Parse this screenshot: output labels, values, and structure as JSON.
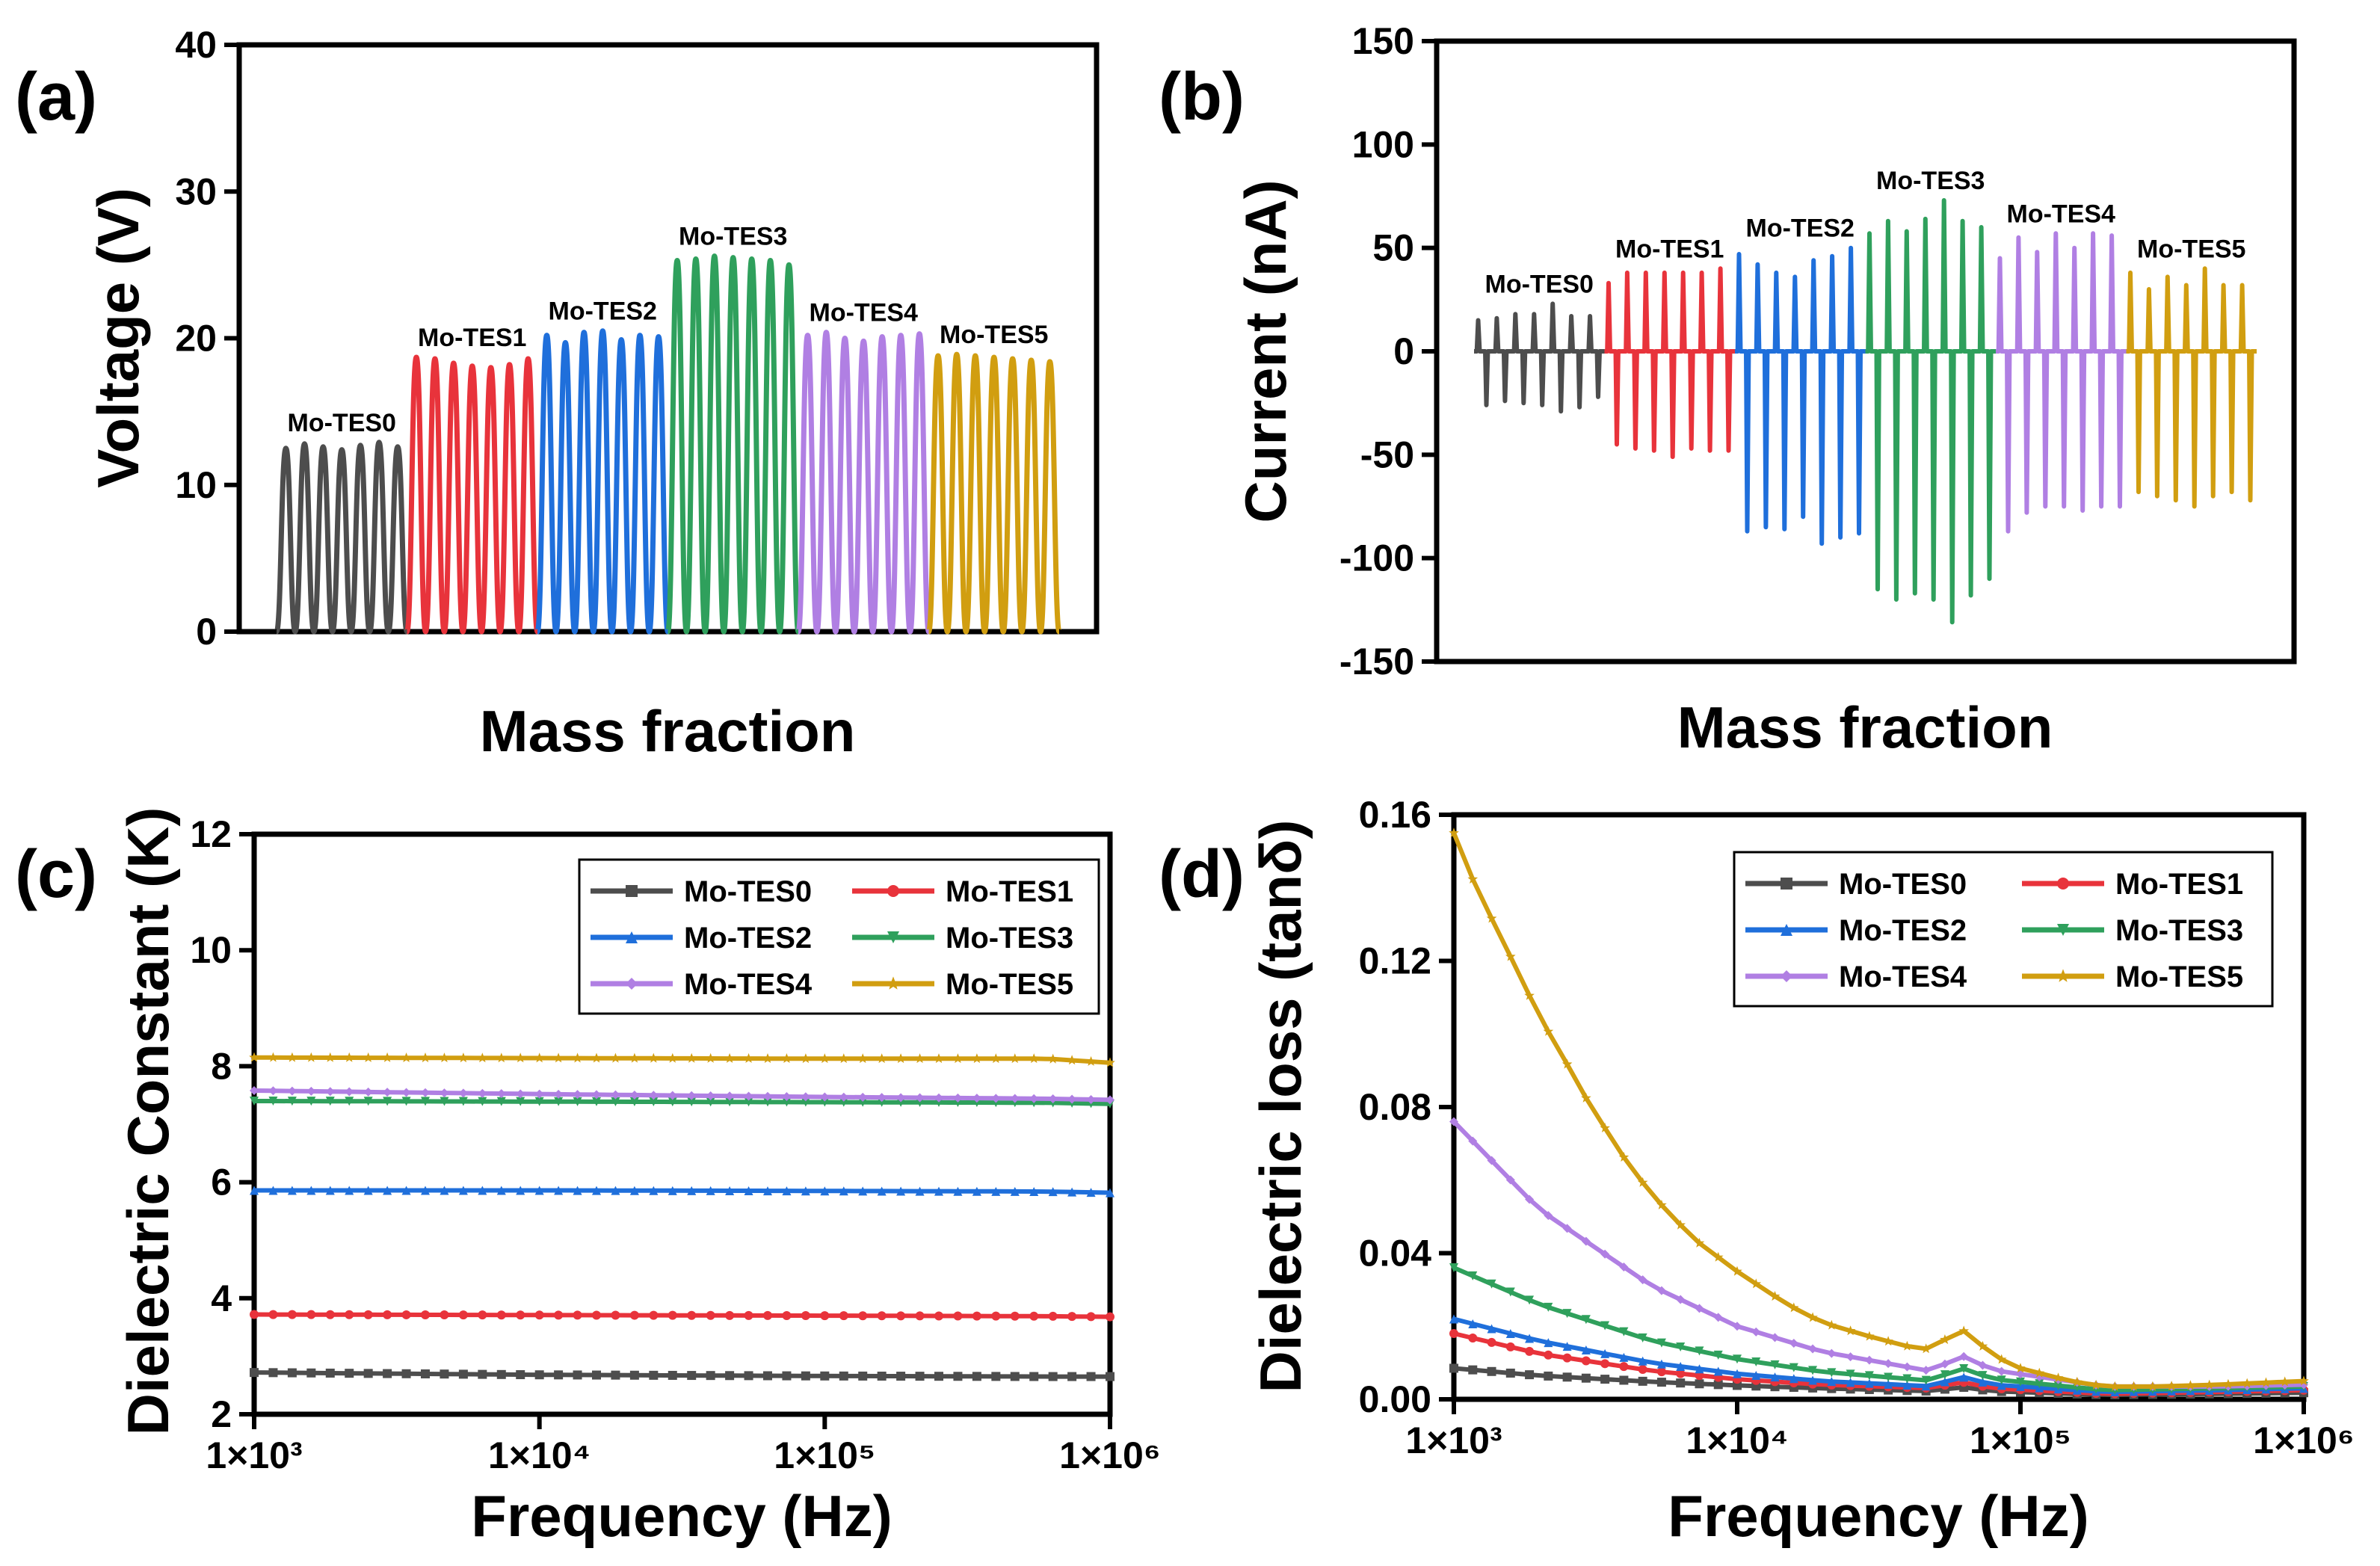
{
  "chart_data": [
    {
      "id": "a",
      "panel_label": "(a)",
      "type": "line",
      "xlabel": "Mass fraction",
      "ylabel": "Voltage (V)",
      "ylim": [
        0,
        40
      ],
      "yticks": [
        0,
        10,
        20,
        30,
        40
      ],
      "ytick_labels": [
        "0",
        "10",
        "20",
        "30",
        "40"
      ],
      "series": [
        {
          "name": "Mo-TES0",
          "color": "#4d4d4d",
          "peaks": [
            12.5,
            12.8,
            12.6,
            12.4,
            12.7,
            12.9,
            12.6
          ]
        },
        {
          "name": "Mo-TES1",
          "color": "#e8333b",
          "peaks": [
            18.7,
            18.6,
            18.3,
            18.1,
            18.0,
            18.2,
            18.6
          ]
        },
        {
          "name": "Mo-TES2",
          "color": "#1f6fdb",
          "peaks": [
            20.2,
            19.7,
            20.4,
            20.5,
            19.9,
            20.2,
            20.1
          ]
        },
        {
          "name": "Mo-TES3",
          "color": "#2fa05c",
          "peaks": [
            25.3,
            25.4,
            25.6,
            25.5,
            25.4,
            25.3,
            25.0
          ]
        },
        {
          "name": "Mo-TES4",
          "color": "#b07fe3",
          "peaks": [
            20.2,
            20.4,
            20.0,
            19.8,
            20.1,
            20.2,
            20.3
          ]
        },
        {
          "name": "Mo-TES5",
          "color": "#d19e10",
          "peaks": [
            18.8,
            18.9,
            18.8,
            18.7,
            18.6,
            18.5,
            18.4
          ]
        }
      ]
    },
    {
      "id": "b",
      "panel_label": "(b)",
      "type": "line",
      "xlabel": "Mass fraction",
      "ylabel": "Current (nA)",
      "ylim": [
        -150,
        150
      ],
      "yticks": [
        -150,
        -100,
        -50,
        0,
        50,
        100,
        150
      ],
      "ytick_labels": [
        "-150",
        "-100",
        "-50",
        "0",
        "50",
        "100",
        "150"
      ],
      "series": [
        {
          "name": "Mo-TES0",
          "color": "#4d4d4d",
          "pos": [
            15,
            16,
            18,
            18,
            23,
            17,
            17
          ],
          "neg": [
            -26,
            -24,
            -25,
            -26,
            -29,
            -27,
            -22
          ]
        },
        {
          "name": "Mo-TES1",
          "color": "#e8333b",
          "pos": [
            33,
            38,
            38,
            38,
            38,
            38,
            40
          ],
          "neg": [
            -45,
            -47,
            -48,
            -51,
            -47,
            -48,
            -48
          ]
        },
        {
          "name": "Mo-TES2",
          "color": "#1f6fdb",
          "pos": [
            47,
            42,
            38,
            36,
            44,
            46,
            50
          ],
          "neg": [
            -87,
            -85,
            -86,
            -80,
            -93,
            -90,
            -88
          ]
        },
        {
          "name": "Mo-TES3",
          "color": "#2fa05c",
          "pos": [
            57,
            63,
            58,
            64,
            73,
            63,
            60
          ],
          "neg": [
            -115,
            -120,
            -117,
            -120,
            -131,
            -118,
            -110
          ]
        },
        {
          "name": "Mo-TES4",
          "color": "#b07fe3",
          "pos": [
            45,
            55,
            48,
            57,
            50,
            57,
            56
          ],
          "neg": [
            -87,
            -78,
            -75,
            -75,
            -77,
            -75,
            -75
          ]
        },
        {
          "name": "Mo-TES5",
          "color": "#d19e10",
          "pos": [
            38,
            30,
            36,
            32,
            40,
            32,
            32
          ],
          "neg": [
            -68,
            -70,
            -72,
            -75,
            -70,
            -68,
            -72
          ]
        }
      ]
    },
    {
      "id": "c",
      "panel_label": "(c)",
      "type": "line",
      "xscale": "log",
      "xlim": [
        1000,
        1000000
      ],
      "xticks": [
        1000,
        10000,
        100000,
        1000000
      ],
      "xtick_labels": [
        "1×10³",
        "1×10⁴",
        "1×10⁵",
        "1×10⁶"
      ],
      "xlabel": "Frequency (Hz)",
      "ylabel": "Dielectric Constant (K)",
      "ylim": [
        2,
        12
      ],
      "yticks": [
        2,
        4,
        6,
        8,
        10,
        12
      ],
      "ytick_labels": [
        "2",
        "4",
        "6",
        "8",
        "10",
        "12"
      ],
      "legend": "top-right",
      "series": [
        {
          "name": "Mo-TES0",
          "color": "#4d4d4d",
          "marker": "square",
          "x": [
            1000,
            10000,
            100000,
            600000,
            1000000
          ],
          "y": [
            2.72,
            2.68,
            2.66,
            2.65,
            2.65
          ]
        },
        {
          "name": "Mo-TES1",
          "color": "#e8333b",
          "marker": "circle",
          "x": [
            1000,
            10000,
            100000,
            600000,
            1000000
          ],
          "y": [
            3.72,
            3.71,
            3.7,
            3.69,
            3.68
          ]
        },
        {
          "name": "Mo-TES2",
          "color": "#1f6fdb",
          "marker": "triangle-up",
          "x": [
            1000,
            10000,
            100000,
            600000,
            1000000
          ],
          "y": [
            5.86,
            5.86,
            5.85,
            5.84,
            5.82
          ]
        },
        {
          "name": "Mo-TES3",
          "color": "#2fa05c",
          "marker": "triangle-down",
          "x": [
            1000,
            10000,
            100000,
            600000,
            1000000
          ],
          "y": [
            7.4,
            7.39,
            7.38,
            7.37,
            7.35
          ]
        },
        {
          "name": "Mo-TES4",
          "color": "#b07fe3",
          "marker": "diamond",
          "x": [
            1000,
            10000,
            100000,
            600000,
            1000000
          ],
          "y": [
            7.58,
            7.52,
            7.47,
            7.44,
            7.42
          ]
        },
        {
          "name": "Mo-TES5",
          "color": "#d19e10",
          "marker": "star",
          "x": [
            1000,
            10000,
            100000,
            600000,
            1000000
          ],
          "y": [
            8.15,
            8.14,
            8.13,
            8.13,
            8.06
          ]
        }
      ]
    },
    {
      "id": "d",
      "panel_label": "(d)",
      "type": "line",
      "xscale": "log",
      "xlim": [
        1000,
        1000000
      ],
      "xticks": [
        1000,
        10000,
        100000,
        1000000
      ],
      "xtick_labels": [
        "1×10³",
        "1×10⁴",
        "1×10⁵",
        "1×10⁶"
      ],
      "xlabel": "Frequency (Hz)",
      "ylabel": "Dielectric loss (tanδ)",
      "ylim": [
        0,
        0.16
      ],
      "yticks": [
        0,
        0.04,
        0.08,
        0.12,
        0.16
      ],
      "ytick_labels": [
        "0.00",
        "0.04",
        "0.08",
        "0.12",
        "0.16"
      ],
      "legend": "top-right",
      "series": [
        {
          "name": "Mo-TES0",
          "color": "#4d4d4d",
          "marker": "square",
          "x": [
            1000,
            2000,
            5000,
            10000,
            20000,
            50000,
            60000,
            80000,
            200000,
            500000,
            1000000
          ],
          "y": [
            0.0085,
            0.0065,
            0.0048,
            0.0038,
            0.003,
            0.0022,
            0.0035,
            0.0022,
            0.0012,
            0.0015,
            0.0018
          ]
        },
        {
          "name": "Mo-TES1",
          "color": "#e8333b",
          "marker": "circle",
          "x": [
            1000,
            2000,
            5000,
            10000,
            20000,
            50000,
            60000,
            80000,
            200000,
            500000,
            1000000
          ],
          "y": [
            0.018,
            0.0125,
            0.0078,
            0.0055,
            0.004,
            0.003,
            0.005,
            0.003,
            0.0015,
            0.002,
            0.0025
          ]
        },
        {
          "name": "Mo-TES2",
          "color": "#1f6fdb",
          "marker": "triangle-up",
          "x": [
            1000,
            2000,
            5000,
            10000,
            20000,
            50000,
            60000,
            80000,
            200000,
            500000,
            1000000
          ],
          "y": [
            0.022,
            0.016,
            0.01,
            0.007,
            0.005,
            0.0035,
            0.0065,
            0.004,
            0.002,
            0.0025,
            0.003
          ]
        },
        {
          "name": "Mo-TES3",
          "color": "#2fa05c",
          "marker": "triangle-down",
          "x": [
            1000,
            2000,
            5000,
            10000,
            20000,
            50000,
            60000,
            80000,
            200000,
            500000,
            1000000
          ],
          "y": [
            0.036,
            0.026,
            0.016,
            0.011,
            0.0075,
            0.005,
            0.009,
            0.0055,
            0.0025,
            0.003,
            0.0035
          ]
        },
        {
          "name": "Mo-TES4",
          "color": "#b07fe3",
          "marker": "diamond",
          "x": [
            1000,
            2000,
            5000,
            10000,
            20000,
            50000,
            60000,
            80000,
            200000,
            500000,
            1000000
          ],
          "y": [
            0.076,
            0.052,
            0.031,
            0.02,
            0.013,
            0.0075,
            0.0125,
            0.008,
            0.0035,
            0.0035,
            0.004
          ]
        },
        {
          "name": "Mo-TES5",
          "color": "#d19e10",
          "marker": "star",
          "x": [
            1000,
            1200,
            1500,
            2000,
            2500,
            3000,
            4000,
            5000,
            7000,
            10000,
            15000,
            20000,
            30000,
            40000,
            50000,
            60000,
            70000,
            80000,
            100000,
            150000,
            200000,
            300000,
            500000,
            1000000
          ],
          "y": [
            0.155,
            0.14,
            0.125,
            0.105,
            0.092,
            0.081,
            0.066,
            0.056,
            0.044,
            0.035,
            0.026,
            0.021,
            0.017,
            0.0145,
            0.0135,
            0.02,
            0.016,
            0.012,
            0.0085,
            0.005,
            0.0035,
            0.0035,
            0.004,
            0.005
          ]
        }
      ]
    }
  ]
}
